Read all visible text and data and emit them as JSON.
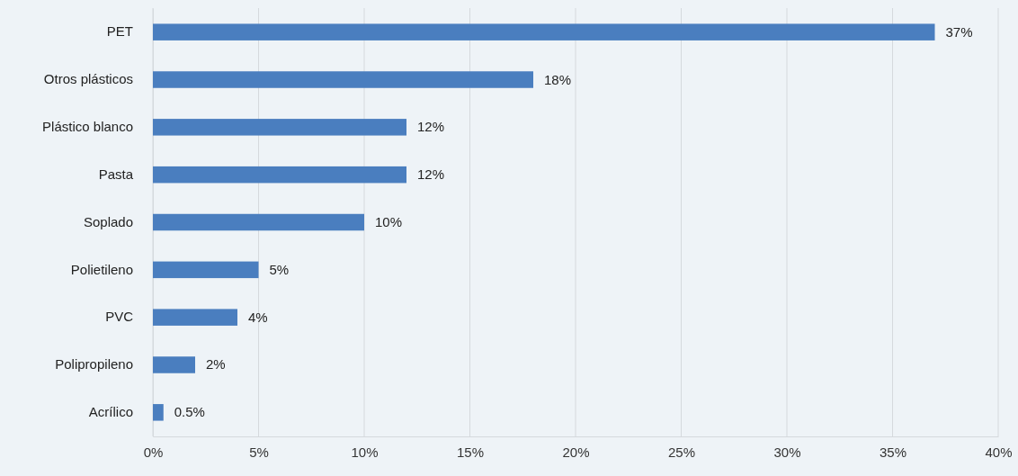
{
  "chart_data": {
    "type": "bar",
    "orientation": "horizontal",
    "categories": [
      "PET",
      "Otros plásticos",
      "Plástico blanco",
      "Pasta",
      "Soplado",
      "Polietileno",
      "PVC",
      "Polipropileno",
      "Acrílico"
    ],
    "values": [
      37,
      18,
      12,
      12,
      10,
      5,
      4,
      2,
      0.5
    ],
    "color": "#4a7ebf",
    "xlim": [
      0,
      40
    ],
    "xticks": [
      {
        "value": 0,
        "label": "0%"
      },
      {
        "value": 5,
        "label": "5%"
      },
      {
        "value": 10,
        "label": "10%"
      },
      {
        "value": 15,
        "label": "15%"
      },
      {
        "value": 20,
        "label": "20%"
      },
      {
        "value": 25,
        "label": "25%"
      },
      {
        "value": 30,
        "label": "30%"
      },
      {
        "value": 35,
        "label": "35%"
      },
      {
        "value": 40,
        "label": "40%"
      }
    ],
    "value_labels": [
      "37%",
      "18%",
      "12%",
      "12%",
      "10%",
      "5%",
      "4%",
      "2%",
      "0.5%"
    ],
    "grid": "x"
  }
}
